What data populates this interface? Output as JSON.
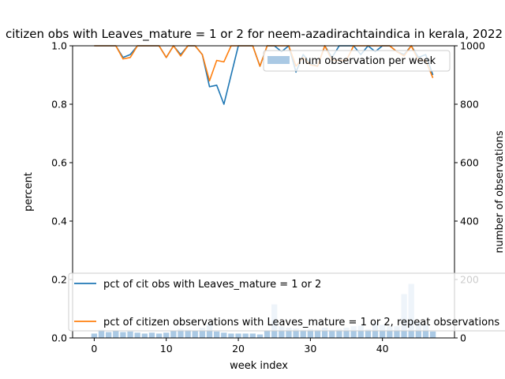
{
  "chart_data": {
    "type": "line",
    "title": "citizen obs with Leaves_mature = 1 or 2 for neem-azadirachtaindica in kerala, 2022",
    "xlabel": "week index",
    "ylabel": "percent",
    "y2label": "number of observations",
    "xlim": [
      -3,
      50
    ],
    "ylim": [
      0,
      1.0
    ],
    "y2lim": [
      0,
      1000
    ],
    "x_ticks": [
      0,
      10,
      20,
      30,
      40
    ],
    "y_ticks": [
      "0.0",
      "0.2",
      "0.4",
      "0.6",
      "0.8",
      "1.0"
    ],
    "y2_ticks": [
      "0",
      "200",
      "400",
      "600",
      "800",
      "1000"
    ],
    "x": [
      0,
      1,
      2,
      3,
      4,
      5,
      6,
      7,
      8,
      9,
      10,
      11,
      12,
      13,
      14,
      15,
      16,
      17,
      18,
      19,
      20,
      21,
      22,
      23,
      24,
      25,
      26,
      27,
      28,
      29,
      30,
      31,
      32,
      33,
      34,
      35,
      36,
      37,
      38,
      39,
      40,
      41,
      42,
      43,
      44,
      45,
      46,
      47
    ],
    "series": [
      {
        "name": "pct of cit obs with Leaves_mature = 1 or 2",
        "color": "#1f77b4",
        "values": [
          1.0,
          1.0,
          1.0,
          1.0,
          0.96,
          0.97,
          1.0,
          1.0,
          1.0,
          1.0,
          0.96,
          1.0,
          0.97,
          1.0,
          1.0,
          0.97,
          0.86,
          0.865,
          0.8,
          0.9,
          1.0,
          1.0,
          1.0,
          0.93,
          1.0,
          1.0,
          0.98,
          1.0,
          0.91,
          0.97,
          0.94,
          0.93,
          1.0,
          0.96,
          1.0,
          1.0,
          1.0,
          0.97,
          1.0,
          0.98,
          1.0,
          1.0,
          0.98,
          0.97,
          1.0,
          0.96,
          0.97,
          0.9
        ]
      },
      {
        "name": "pct of citizen observations with Leaves_mature = 1 or 2, repeat observations",
        "color": "#ff7f0e",
        "values": [
          1.0,
          1.0,
          1.0,
          1.0,
          0.955,
          0.96,
          1.0,
          1.0,
          1.0,
          1.0,
          0.96,
          1.0,
          0.965,
          1.0,
          1.0,
          0.97,
          0.88,
          0.95,
          0.945,
          1.0,
          1.0,
          1.0,
          1.0,
          0.93,
          1.0,
          1.0,
          1.0,
          1.0,
          0.93,
          0.96,
          0.935,
          0.93,
          1.0,
          0.95,
          0.95,
          0.95,
          1.0,
          1.0,
          1.0,
          1.0,
          1.0,
          1.0,
          0.98,
          0.965,
          1.0,
          0.95,
          0.95,
          0.89
        ]
      }
    ],
    "bars": {
      "name": "num observation per week",
      "color": "#aac9e4",
      "axis": "right",
      "values": [
        15,
        28,
        20,
        25,
        20,
        22,
        18,
        15,
        18,
        15,
        18,
        25,
        30,
        28,
        25,
        35,
        50,
        22,
        18,
        15,
        15,
        15,
        15,
        12,
        25,
        115,
        40,
        35,
        32,
        28,
        30,
        28,
        35,
        28,
        30,
        35,
        40,
        42,
        30,
        50,
        45,
        40,
        40,
        150,
        185,
        55,
        45,
        22
      ]
    },
    "legend_upper": {
      "position": "top-right"
    },
    "legend_lower": {
      "position": "bottom-left"
    }
  }
}
